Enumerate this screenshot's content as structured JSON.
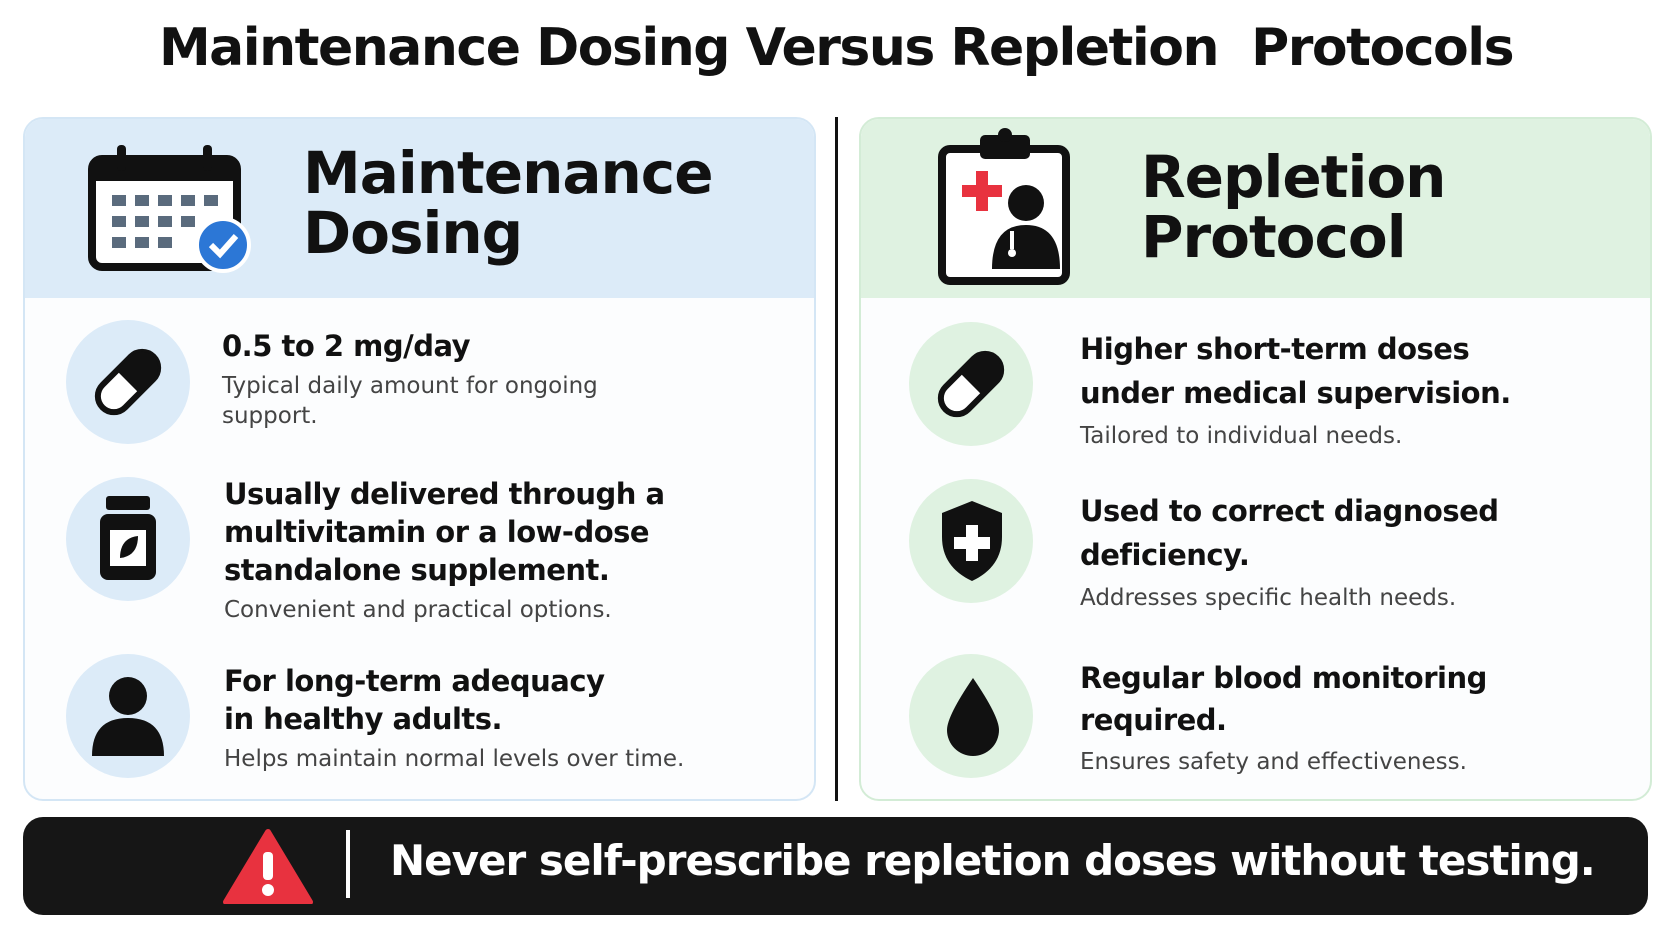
{
  "title": "Maintenance Dosing Versus Repletion  Protocols",
  "panels": [
    {
      "heading": "Maintenance Dosing",
      "items": [
        {
          "title": "0.5 to 2 mg/day",
          "description": "Typical daily amount for ongoing support."
        },
        {
          "title": "Usually delivered through a multivitamin or a low-dose standalone supplement.",
          "description": "Convenient and practical options."
        },
        {
          "title": "For long-term adequacy in healthy adults.",
          "description": "Helps maintain normal levels over time."
        }
      ]
    },
    {
      "heading": "Repletion Protocol",
      "items": [
        {
          "title": "Higher short-term doses under medical supervision.",
          "description": "Tailored to individual needs."
        },
        {
          "title": "Used to correct diagnosed deficiency.",
          "description": "Addresses specific health needs."
        },
        {
          "title": "Regular blood monitoring required.",
          "description": "Ensures safety and effectiveness."
        }
      ]
    }
  ],
  "warning": "Never self-prescribe repletion doses without testing."
}
